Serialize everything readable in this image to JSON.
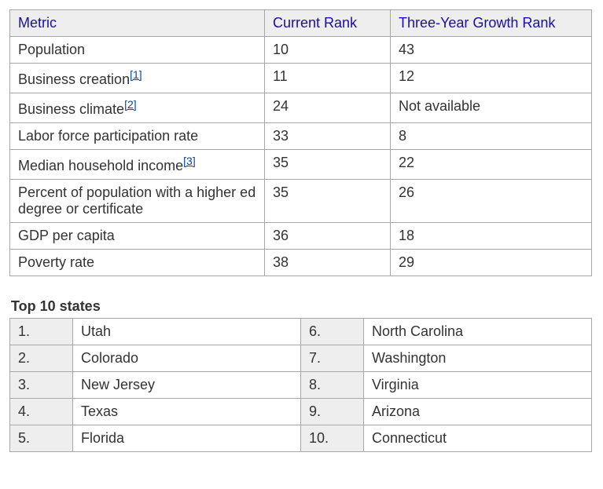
{
  "metrics_table": {
    "columns": [
      "Metric",
      "Current Rank",
      "Three-Year Growth Rank"
    ],
    "rows": [
      {
        "metric": "Population",
        "ref": null,
        "current": "10",
        "growth": "43"
      },
      {
        "metric": "Business creation",
        "ref": "[1]",
        "current": "11",
        "growth": "12"
      },
      {
        "metric": "Business climate",
        "ref": "[2]",
        "current": "24",
        "growth": "Not available"
      },
      {
        "metric": "Labor force participation rate",
        "ref": null,
        "current": "33",
        "growth": "8"
      },
      {
        "metric": "Median household income",
        "ref": "[3]",
        "current": "35",
        "growth": "22"
      },
      {
        "metric": "Percent of population with a higher ed degree or certificate",
        "ref": null,
        "current": "35",
        "growth": "26"
      },
      {
        "metric": "GDP per capita",
        "ref": null,
        "current": "36",
        "growth": "18"
      },
      {
        "metric": "Poverty rate",
        "ref": null,
        "current": "38",
        "growth": "29"
      }
    ]
  },
  "top_states": {
    "title": "Top 10 states",
    "left": [
      {
        "n": "1.",
        "state": "Utah"
      },
      {
        "n": "2.",
        "state": "Colorado"
      },
      {
        "n": "3.",
        "state": "New Jersey"
      },
      {
        "n": "4.",
        "state": "Texas"
      },
      {
        "n": "5.",
        "state": "Florida"
      }
    ],
    "right": [
      {
        "n": "6.",
        "state": "North Carolina"
      },
      {
        "n": "7.",
        "state": "Washington"
      },
      {
        "n": "8.",
        "state": "Virginia"
      },
      {
        "n": "9.",
        "state": "Arizona"
      },
      {
        "n": "10.",
        "state": "Connecticut"
      }
    ]
  }
}
